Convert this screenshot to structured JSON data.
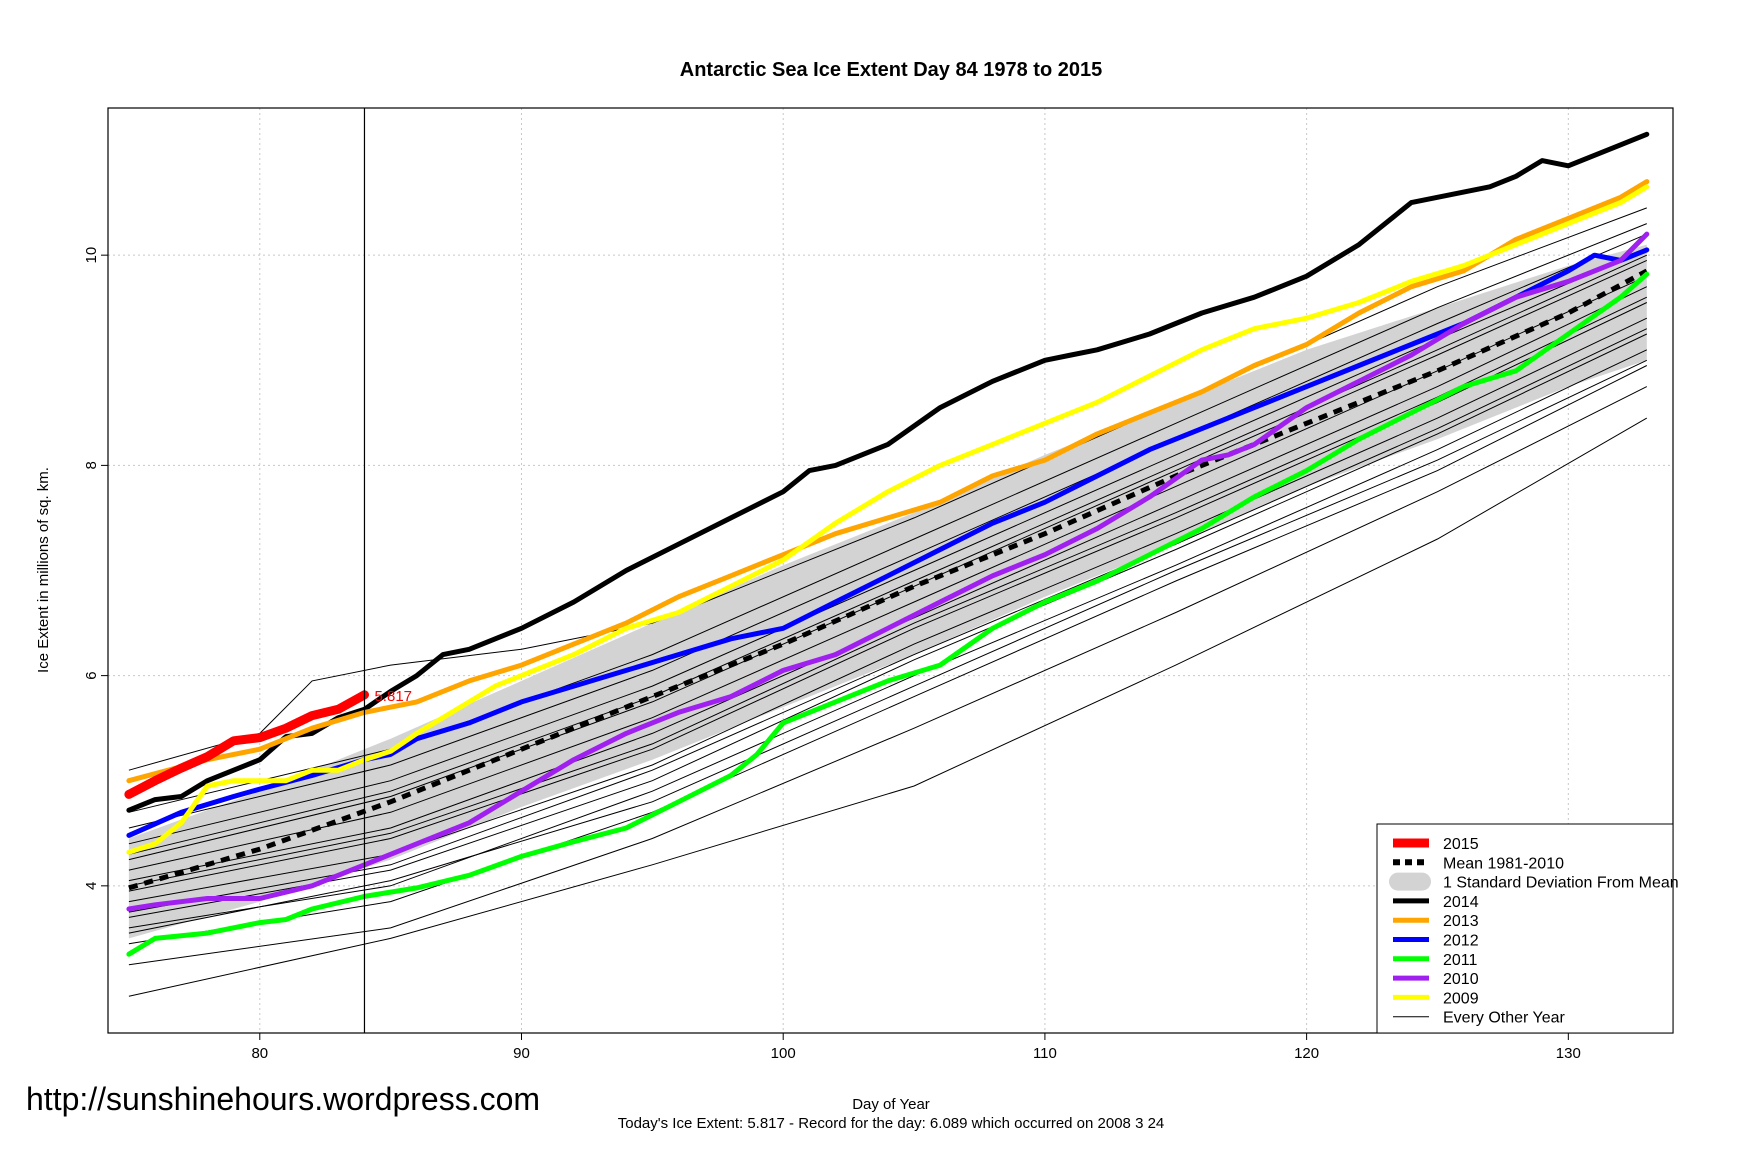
{
  "chart_data": {
    "type": "line",
    "title": "Antarctic Sea Ice Extent Day 84 1978 to 2015",
    "xlabel": "Day of Year",
    "ylabel": "Ice Extent in millions of sq. km.",
    "xlim": [
      74.2,
      134.0
    ],
    "ylim": [
      2.6,
      11.4
    ],
    "x_ticks": [
      80,
      90,
      100,
      110,
      120,
      130
    ],
    "y_ticks": [
      4,
      6,
      8,
      10
    ],
    "marker_day": 84,
    "current_label": "5.817",
    "footnote": "Today's Ice Extent: 5.817  - Record for the day: 6.089 which occurred on 2008 3 24",
    "watermark": "http://sunshinehours.wordpress.com",
    "legend": [
      {
        "label": "2015",
        "color": "#ff0000",
        "kind": "line",
        "width": 9
      },
      {
        "label": "Mean 1981-2010",
        "color": "#000000",
        "kind": "dashed",
        "width": 6
      },
      {
        "label": "1 Standard Deviation From Mean",
        "color": "#d3d3d3",
        "kind": "box",
        "width": 0
      },
      {
        "label": "2014",
        "color": "#000000",
        "kind": "line",
        "width": 5
      },
      {
        "label": "2013",
        "color": "#ffa500",
        "kind": "line",
        "width": 5
      },
      {
        "label": "2012",
        "color": "#0000ff",
        "kind": "line",
        "width": 5
      },
      {
        "label": "2011",
        "color": "#00ff00",
        "kind": "line",
        "width": 5
      },
      {
        "label": "2010",
        "color": "#a020f0",
        "kind": "line",
        "width": 5
      },
      {
        "label": "2009",
        "color": "#ffff00",
        "kind": "line",
        "width": 5
      },
      {
        "label": "Every Other Year",
        "color": "#000000",
        "kind": "line",
        "width": 1
      }
    ],
    "sd_band": {
      "x": [
        75,
        80,
        85,
        90,
        95,
        100,
        105,
        110,
        115,
        120,
        125,
        130,
        133
      ],
      "upper": [
        4.45,
        4.9,
        5.4,
        5.95,
        6.5,
        7.05,
        7.55,
        8.1,
        8.6,
        9.1,
        9.5,
        9.9,
        10.1
      ],
      "lower": [
        3.5,
        3.85,
        4.25,
        4.75,
        5.2,
        5.7,
        6.2,
        6.75,
        7.25,
        7.8,
        8.25,
        8.75,
        9.0
      ]
    },
    "mean": {
      "x": [
        75,
        80,
        85,
        90,
        95,
        100,
        105,
        110,
        115,
        120,
        125,
        130,
        133
      ],
      "y": [
        3.98,
        4.35,
        4.8,
        5.3,
        5.8,
        6.3,
        6.85,
        7.35,
        7.9,
        8.4,
        8.9,
        9.45,
        9.85
      ]
    },
    "series": [
      {
        "name": "2014",
        "color": "#000000",
        "width": 5,
        "x": [
          75,
          76,
          77,
          78,
          79,
          80,
          81,
          82,
          83,
          84,
          85,
          86,
          87,
          88,
          89,
          90,
          92,
          94,
          96,
          98,
          100,
          101,
          102,
          104,
          106,
          108,
          110,
          111,
          112,
          114,
          116,
          118,
          120,
          122,
          124,
          126,
          127,
          128,
          129,
          130,
          131,
          132,
          133
        ],
        "y": [
          4.72,
          4.82,
          4.85,
          5.0,
          5.1,
          5.2,
          5.42,
          5.45,
          5.6,
          5.68,
          5.85,
          6.0,
          6.2,
          6.25,
          6.35,
          6.45,
          6.7,
          7.0,
          7.25,
          7.5,
          7.75,
          7.95,
          8.0,
          8.2,
          8.55,
          8.8,
          9.0,
          9.05,
          9.1,
          9.25,
          9.45,
          9.6,
          9.8,
          10.1,
          10.5,
          10.6,
          10.65,
          10.75,
          10.9,
          10.85,
          10.95,
          11.05,
          11.15
        ]
      },
      {
        "name": "2013",
        "color": "#ffa500",
        "width": 5,
        "x": [
          75,
          78,
          80,
          82,
          84,
          86,
          88,
          90,
          92,
          94,
          96,
          98,
          100,
          102,
          104,
          106,
          108,
          110,
          112,
          114,
          116,
          118,
          120,
          122,
          124,
          126,
          128,
          130,
          132,
          133
        ],
        "y": [
          5.0,
          5.2,
          5.3,
          5.5,
          5.65,
          5.75,
          5.95,
          6.1,
          6.3,
          6.5,
          6.75,
          6.95,
          7.15,
          7.35,
          7.5,
          7.65,
          7.9,
          8.05,
          8.3,
          8.5,
          8.7,
          8.95,
          9.15,
          9.45,
          9.7,
          9.85,
          10.15,
          10.35,
          10.55,
          10.7
        ]
      },
      {
        "name": "2012",
        "color": "#0000ff",
        "width": 5,
        "x": [
          75,
          77,
          79,
          80,
          82,
          84,
          85,
          86,
          88,
          90,
          92,
          94,
          96,
          98,
          100,
          102,
          104,
          106,
          108,
          110,
          112,
          114,
          116,
          118,
          120,
          122,
          124,
          126,
          128,
          130,
          131,
          132,
          133
        ],
        "y": [
          4.48,
          4.7,
          4.85,
          4.92,
          5.05,
          5.2,
          5.25,
          5.4,
          5.55,
          5.75,
          5.9,
          6.05,
          6.2,
          6.35,
          6.45,
          6.7,
          6.95,
          7.2,
          7.45,
          7.65,
          7.9,
          8.15,
          8.35,
          8.55,
          8.75,
          8.95,
          9.15,
          9.35,
          9.6,
          9.85,
          10.0,
          9.95,
          10.05
        ]
      },
      {
        "name": "2011",
        "color": "#00ff00",
        "width": 5,
        "x": [
          75,
          76,
          78,
          80,
          81,
          82,
          84,
          86,
          88,
          90,
          92,
          94,
          96,
          98,
          99,
          100,
          102,
          104,
          106,
          108,
          110,
          112,
          114,
          116,
          118,
          120,
          122,
          124,
          126,
          128,
          130,
          132,
          133
        ],
        "y": [
          3.35,
          3.5,
          3.55,
          3.65,
          3.68,
          3.78,
          3.9,
          3.98,
          4.1,
          4.28,
          4.42,
          4.55,
          4.8,
          5.05,
          5.25,
          5.55,
          5.75,
          5.95,
          6.1,
          6.45,
          6.7,
          6.9,
          7.15,
          7.4,
          7.7,
          7.95,
          8.25,
          8.5,
          8.75,
          8.9,
          9.25,
          9.6,
          9.82
        ]
      },
      {
        "name": "2010",
        "color": "#a020f0",
        "width": 5,
        "x": [
          75,
          76,
          78,
          80,
          82,
          84,
          86,
          88,
          90,
          92,
          94,
          96,
          98,
          100,
          102,
          104,
          106,
          108,
          110,
          112,
          114,
          116,
          117,
          118,
          120,
          122,
          124,
          126,
          128,
          130,
          132,
          133
        ],
        "y": [
          3.78,
          3.82,
          3.88,
          3.88,
          4.0,
          4.2,
          4.4,
          4.6,
          4.9,
          5.2,
          5.45,
          5.65,
          5.8,
          6.05,
          6.2,
          6.45,
          6.7,
          6.95,
          7.15,
          7.4,
          7.7,
          8.05,
          8.1,
          8.2,
          8.55,
          8.8,
          9.05,
          9.35,
          9.6,
          9.75,
          9.95,
          10.2
        ]
      },
      {
        "name": "2009",
        "color": "#ffff00",
        "width": 5,
        "x": [
          75,
          76,
          77,
          78,
          79,
          80,
          81,
          82,
          83,
          84,
          85,
          86,
          87,
          88,
          89,
          90,
          92,
          94,
          96,
          98,
          100,
          102,
          104,
          106,
          108,
          110,
          112,
          114,
          116,
          118,
          120,
          122,
          124,
          126,
          128,
          130,
          132,
          133
        ],
        "y": [
          4.32,
          4.4,
          4.6,
          4.95,
          5.0,
          5.0,
          5.0,
          5.1,
          5.1,
          5.2,
          5.28,
          5.45,
          5.6,
          5.75,
          5.9,
          6.0,
          6.2,
          6.45,
          6.6,
          6.85,
          7.1,
          7.45,
          7.75,
          8.0,
          8.2,
          8.4,
          8.6,
          8.85,
          9.1,
          9.3,
          9.4,
          9.55,
          9.75,
          9.9,
          10.1,
          10.3,
          10.5,
          10.65
        ]
      },
      {
        "name": "2015",
        "color": "#ff0000",
        "width": 9,
        "x": [
          75,
          76,
          77,
          78,
          79,
          80,
          81,
          82,
          83,
          84
        ],
        "y": [
          4.87,
          5.0,
          5.12,
          5.23,
          5.38,
          5.41,
          5.5,
          5.62,
          5.68,
          5.817
        ]
      }
    ],
    "other_years": [
      {
        "x": [
          75,
          85,
          95,
          105,
          115,
          125,
          133
        ],
        "y": [
          2.95,
          3.5,
          4.2,
          4.95,
          6.1,
          7.3,
          8.45
        ]
      },
      {
        "x": [
          75,
          85,
          95,
          105,
          115,
          125,
          133
        ],
        "y": [
          3.25,
          3.6,
          4.45,
          5.5,
          6.6,
          7.75,
          8.75
        ]
      },
      {
        "x": [
          75,
          85,
          95,
          105,
          115,
          125,
          133
        ],
        "y": [
          3.45,
          3.85,
          4.7,
          5.8,
          6.9,
          7.95,
          8.95
        ]
      },
      {
        "x": [
          75,
          85,
          95,
          105,
          115,
          125,
          133
        ],
        "y": [
          3.6,
          4.0,
          4.9,
          6.0,
          7.05,
          8.15,
          9.1
        ]
      },
      {
        "x": [
          75,
          85,
          95,
          105,
          115,
          125,
          133
        ],
        "y": [
          3.7,
          4.15,
          5.0,
          6.15,
          7.2,
          8.3,
          9.25
        ]
      },
      {
        "x": [
          75,
          85,
          95,
          105,
          115,
          125,
          133
        ],
        "y": [
          3.85,
          4.3,
          5.15,
          6.3,
          7.35,
          8.45,
          9.4
        ]
      },
      {
        "x": [
          75,
          85,
          95,
          105,
          115,
          125,
          133
        ],
        "y": [
          3.95,
          4.45,
          5.3,
          6.45,
          7.5,
          8.6,
          9.55
        ]
      },
      {
        "x": [
          75,
          85,
          95,
          105,
          115,
          125,
          133
        ],
        "y": [
          4.05,
          4.55,
          5.45,
          6.55,
          7.65,
          8.75,
          9.7
        ]
      },
      {
        "x": [
          75,
          85,
          95,
          105,
          115,
          125,
          133
        ],
        "y": [
          4.15,
          4.7,
          5.6,
          6.7,
          7.8,
          8.9,
          9.8
        ]
      },
      {
        "x": [
          75,
          85,
          95,
          105,
          115,
          125,
          133
        ],
        "y": [
          4.25,
          4.85,
          5.75,
          6.85,
          7.95,
          9.05,
          9.95
        ]
      },
      {
        "x": [
          75,
          85,
          95,
          105,
          115,
          125,
          133
        ],
        "y": [
          4.4,
          5.0,
          5.9,
          7.0,
          8.1,
          9.2,
          10.05
        ]
      },
      {
        "x": [
          75,
          85,
          95,
          105,
          115,
          125,
          133
        ],
        "y": [
          4.55,
          5.15,
          6.05,
          7.15,
          8.25,
          9.35,
          10.2
        ]
      },
      {
        "x": [
          75,
          85,
          95,
          105,
          115,
          125,
          133
        ],
        "y": [
          4.7,
          5.3,
          6.2,
          7.3,
          8.4,
          9.5,
          10.3
        ]
      },
      {
        "x": [
          75,
          80,
          82,
          85,
          90,
          95,
          105,
          115,
          125,
          133
        ],
        "y": [
          5.1,
          5.45,
          5.95,
          6.1,
          6.25,
          6.5,
          7.5,
          8.6,
          9.7,
          10.45
        ]
      },
      {
        "x": [
          75,
          85,
          95,
          105,
          115,
          125,
          133
        ],
        "y": [
          3.55,
          4.05,
          4.8,
          5.9,
          7.0,
          8.05,
          9.0
        ]
      },
      {
        "x": [
          75,
          85,
          95,
          105,
          115,
          125,
          133
        ],
        "y": [
          3.75,
          4.2,
          5.1,
          6.2,
          7.25,
          8.35,
          9.3
        ]
      },
      {
        "x": [
          75,
          85,
          95,
          105,
          115,
          125,
          133
        ],
        "y": [
          4.0,
          4.5,
          5.35,
          6.5,
          7.55,
          8.65,
          9.6
        ]
      },
      {
        "x": [
          75,
          85,
          95,
          105,
          115,
          125,
          133
        ],
        "y": [
          4.3,
          4.9,
          5.8,
          6.9,
          8.0,
          9.1,
          10.0
        ]
      }
    ]
  }
}
